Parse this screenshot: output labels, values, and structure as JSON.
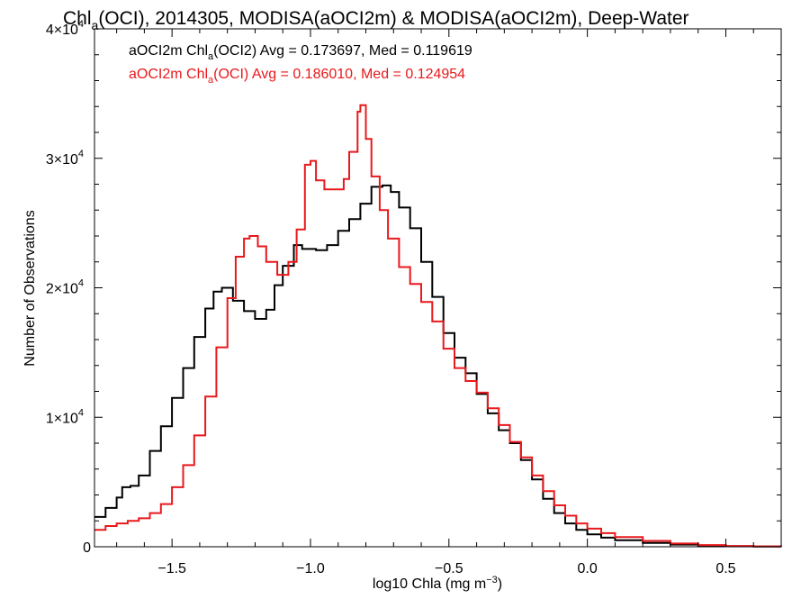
{
  "chart_data": {
    "type": "line",
    "title": {
      "pre": "Chl",
      "sub": "a",
      "post": "(OCI), 2014305, MODISA(aOCI2m) & MODISA(aOCI2m), Deep-Water"
    },
    "xlabel": {
      "pre": "log10 Chla (mg m",
      "sup": "−3",
      "post": ")"
    },
    "ylabel": "Number of Observations",
    "xlim": [
      -1.78,
      0.7
    ],
    "ylim": [
      0,
      40000
    ],
    "xticks": [
      {
        "value": -1.5,
        "label": "−1.5"
      },
      {
        "value": -1.0,
        "label": "−1.0"
      },
      {
        "value": -0.5,
        "label": "−0.5"
      },
      {
        "value": 0.0,
        "label": "0.0"
      },
      {
        "value": 0.5,
        "label": "0.5"
      }
    ],
    "yticks": [
      {
        "value": 0,
        "label": "0",
        "sup": ""
      },
      {
        "value": 10000,
        "label": "1×10",
        "sup": "4"
      },
      {
        "value": 20000,
        "label": "2×10",
        "sup": "4"
      },
      {
        "value": 30000,
        "label": "3×10",
        "sup": "4"
      },
      {
        "value": 40000,
        "label": "4×10",
        "sup": "4"
      }
    ],
    "grid": false,
    "legend_position": "top-left",
    "step": true,
    "series": [
      {
        "name": "aOCI2m",
        "legend": {
          "pre": "aOCI2m Chl",
          "sub": "a",
          "post": "(OCI2) Avg = 0.173697, Med = 0.119619"
        },
        "color": "#000000",
        "points": [
          [
            -1.78,
            2300
          ],
          [
            -1.74,
            3000
          ],
          [
            -1.7,
            3800
          ],
          [
            -1.68,
            4600
          ],
          [
            -1.65,
            4700
          ],
          [
            -1.62,
            5500
          ],
          [
            -1.58,
            7400
          ],
          [
            -1.54,
            9300
          ],
          [
            -1.5,
            11500
          ],
          [
            -1.46,
            13800
          ],
          [
            -1.42,
            16200
          ],
          [
            -1.38,
            18400
          ],
          [
            -1.35,
            19700
          ],
          [
            -1.32,
            20000
          ],
          [
            -1.28,
            19000
          ],
          [
            -1.24,
            18200
          ],
          [
            -1.2,
            17600
          ],
          [
            -1.16,
            18300
          ],
          [
            -1.13,
            20200
          ],
          [
            -1.1,
            21700
          ],
          [
            -1.06,
            23300
          ],
          [
            -1.03,
            23000
          ],
          [
            -0.98,
            22900
          ],
          [
            -0.94,
            23300
          ],
          [
            -0.9,
            24400
          ],
          [
            -0.86,
            25300
          ],
          [
            -0.82,
            26500
          ],
          [
            -0.78,
            27800
          ],
          [
            -0.74,
            27900
          ],
          [
            -0.71,
            27400
          ],
          [
            -0.68,
            26200
          ],
          [
            -0.64,
            24600
          ],
          [
            -0.6,
            22000
          ],
          [
            -0.56,
            19300
          ],
          [
            -0.52,
            16500
          ],
          [
            -0.48,
            14600
          ],
          [
            -0.44,
            13400
          ],
          [
            -0.4,
            11800
          ],
          [
            -0.36,
            10300
          ],
          [
            -0.32,
            9000
          ],
          [
            -0.28,
            8000
          ],
          [
            -0.24,
            6700
          ],
          [
            -0.2,
            5200
          ],
          [
            -0.16,
            3700
          ],
          [
            -0.12,
            2600
          ],
          [
            -0.08,
            1800
          ],
          [
            -0.04,
            1300
          ],
          [
            0.0,
            950
          ],
          [
            0.05,
            700
          ],
          [
            0.1,
            500
          ],
          [
            0.2,
            300
          ],
          [
            0.3,
            170
          ],
          [
            0.4,
            90
          ],
          [
            0.5,
            40
          ],
          [
            0.6,
            15
          ],
          [
            0.7,
            5
          ]
        ]
      },
      {
        "name": "aOCI2m",
        "legend": {
          "pre": "aOCI2m Chl",
          "sub": "a",
          "post": "(OCI) Avg = 0.186010, Med = 0.124954"
        },
        "color": "#e8191c",
        "points": [
          [
            -1.78,
            1300
          ],
          [
            -1.74,
            1600
          ],
          [
            -1.7,
            1800
          ],
          [
            -1.66,
            2000
          ],
          [
            -1.62,
            2200
          ],
          [
            -1.58,
            2600
          ],
          [
            -1.54,
            3300
          ],
          [
            -1.5,
            4600
          ],
          [
            -1.46,
            6300
          ],
          [
            -1.42,
            8600
          ],
          [
            -1.38,
            11600
          ],
          [
            -1.34,
            15400
          ],
          [
            -1.3,
            19200
          ],
          [
            -1.27,
            22400
          ],
          [
            -1.24,
            23800
          ],
          [
            -1.22,
            24000
          ],
          [
            -1.19,
            23200
          ],
          [
            -1.16,
            22000
          ],
          [
            -1.12,
            21000
          ],
          [
            -1.08,
            22000
          ],
          [
            -1.05,
            24500
          ],
          [
            -1.02,
            29500
          ],
          [
            -1.0,
            29800
          ],
          [
            -0.98,
            28300
          ],
          [
            -0.95,
            27600
          ],
          [
            -0.92,
            27600
          ],
          [
            -0.88,
            28400
          ],
          [
            -0.86,
            30500
          ],
          [
            -0.83,
            33600
          ],
          [
            -0.82,
            34100
          ],
          [
            -0.8,
            31500
          ],
          [
            -0.78,
            28600
          ],
          [
            -0.75,
            26000
          ],
          [
            -0.72,
            23800
          ],
          [
            -0.68,
            21600
          ],
          [
            -0.64,
            20300
          ],
          [
            -0.6,
            18900
          ],
          [
            -0.56,
            17400
          ],
          [
            -0.52,
            15300
          ],
          [
            -0.48,
            13800
          ],
          [
            -0.44,
            12800
          ],
          [
            -0.4,
            11900
          ],
          [
            -0.36,
            10700
          ],
          [
            -0.32,
            9400
          ],
          [
            -0.28,
            8100
          ],
          [
            -0.24,
            6900
          ],
          [
            -0.2,
            5500
          ],
          [
            -0.16,
            4300
          ],
          [
            -0.12,
            3200
          ],
          [
            -0.08,
            2400
          ],
          [
            -0.04,
            1800
          ],
          [
            0.0,
            1400
          ],
          [
            0.05,
            1050
          ],
          [
            0.1,
            750
          ],
          [
            0.2,
            450
          ],
          [
            0.3,
            250
          ],
          [
            0.4,
            130
          ],
          [
            0.5,
            60
          ],
          [
            0.6,
            25
          ],
          [
            0.7,
            10
          ]
        ]
      }
    ]
  }
}
